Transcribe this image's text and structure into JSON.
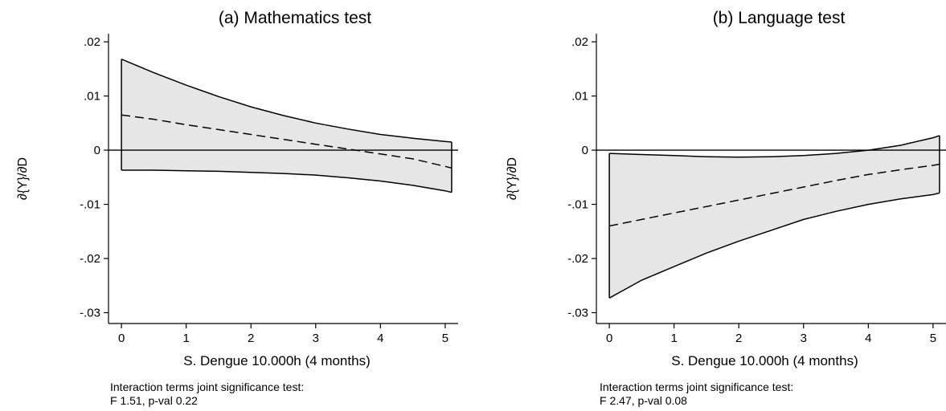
{
  "chart_data": [
    {
      "type": "line",
      "title": "(a) Mathematics test",
      "xlabel": "S. Dengue 10.000h (4 months)",
      "ylabel": "∂{Y}/∂D",
      "xlim": [
        -0.2,
        5.2
      ],
      "ylim": [
        -0.032,
        0.0215
      ],
      "x_ticks": [
        0,
        1,
        2,
        3,
        4,
        5
      ],
      "x_tick_labels": [
        "0",
        "1",
        "2",
        "3",
        "4",
        "5"
      ],
      "y_ticks": [
        0.02,
        0.01,
        0,
        -0.01,
        -0.02,
        -0.03
      ],
      "y_tick_labels": [
        ".02",
        ".01",
        "0",
        "-.01",
        "-.02",
        "-.03"
      ],
      "reference_line_y": 0,
      "grid": false,
      "x": [
        0,
        0.5,
        1,
        1.5,
        2,
        2.5,
        3,
        3.5,
        4,
        4.5,
        5,
        5.1
      ],
      "series": [
        {
          "style": "dashed",
          "values": [
            0.0065,
            0.0057,
            0.0047,
            0.0038,
            0.0029,
            0.002,
            0.0011,
            0.0002,
            -0.0007,
            -0.0016,
            -0.003,
            -0.0033
          ]
        },
        {
          "style": "solid",
          "values": [
            0.0168,
            0.0143,
            0.012,
            0.0099,
            0.008,
            0.0064,
            0.005,
            0.0039,
            0.0029,
            0.0022,
            0.0016,
            0.0015
          ]
        },
        {
          "style": "solid",
          "values": [
            -0.0037,
            -0.0037,
            -0.0038,
            -0.0039,
            -0.0041,
            -0.0043,
            -0.0046,
            -0.0051,
            -0.0057,
            -0.0065,
            -0.0075,
            -0.0078
          ]
        }
      ],
      "band_fill": "#e6e6e6",
      "note_line1": "Interaction terms joint significance test:",
      "note_line2": "F 1.51, p-val 0.22"
    },
    {
      "type": "line",
      "title": "(b) Language test",
      "xlabel": "S. Dengue 10.000h (4 months)",
      "ylabel": "∂{Y}/∂D",
      "xlim": [
        -0.2,
        5.2
      ],
      "ylim": [
        -0.032,
        0.0215
      ],
      "x_ticks": [
        0,
        1,
        2,
        3,
        4,
        5
      ],
      "x_tick_labels": [
        "0",
        "1",
        "2",
        "3",
        "4",
        "5"
      ],
      "y_ticks": [
        0.02,
        0.01,
        0,
        -0.01,
        -0.02,
        -0.03
      ],
      "y_tick_labels": [
        ".02",
        ".01",
        "0",
        "-.01",
        "-.02",
        "-.03"
      ],
      "reference_line_y": 0,
      "grid": false,
      "x": [
        0,
        0.5,
        1,
        1.5,
        2,
        2.5,
        3,
        3.5,
        4,
        4.5,
        5,
        5.1
      ],
      "series": [
        {
          "style": "dashed",
          "values": [
            -0.014,
            -0.0128,
            -0.0116,
            -0.0104,
            -0.0092,
            -0.008,
            -0.0068,
            -0.0056,
            -0.0045,
            -0.0036,
            -0.0028,
            -0.0026
          ]
        },
        {
          "style": "solid",
          "values": [
            -0.0006,
            -0.0008,
            -0.001,
            -0.0012,
            -0.0013,
            -0.0012,
            -0.001,
            -0.0006,
            0.0,
            0.0009,
            0.0023,
            0.0027
          ]
        },
        {
          "style": "solid",
          "values": [
            -0.0273,
            -0.024,
            -0.0215,
            -0.019,
            -0.0168,
            -0.0148,
            -0.0128,
            -0.0113,
            -0.01,
            -0.009,
            -0.0082,
            -0.0079
          ]
        }
      ],
      "band_fill": "#e6e6e6",
      "note_line1": "Interaction terms joint significance test:",
      "note_line2": "F 2.47, p-val 0.08"
    }
  ]
}
